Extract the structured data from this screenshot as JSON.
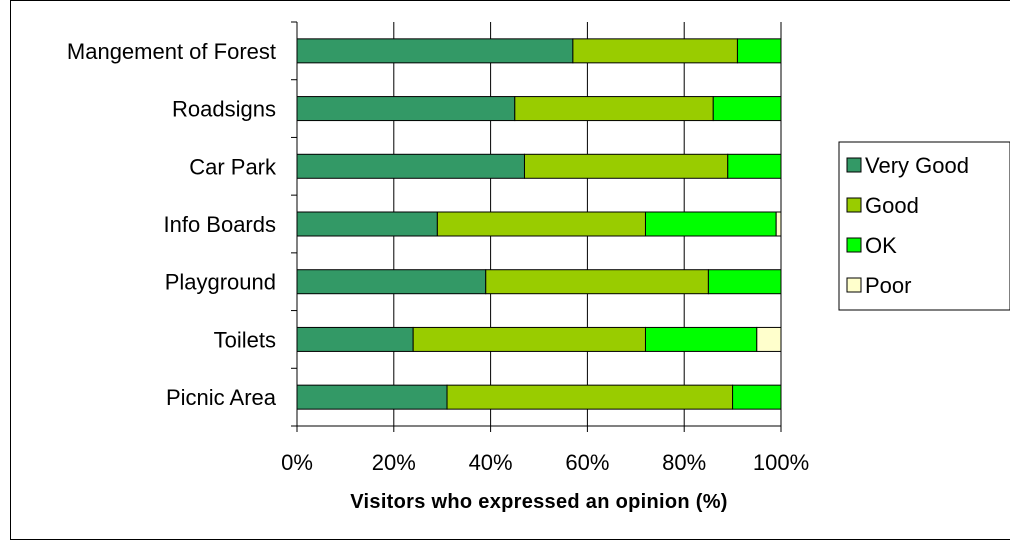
{
  "chart_data": {
    "type": "bar",
    "orientation": "horizontal",
    "stacked": true,
    "categories": [
      "Mangement of Forest",
      "Roadsigns",
      "Car Park",
      "Info Boards",
      "Playground",
      "Toilets",
      "Picnic Area"
    ],
    "series": [
      {
        "name": "Very Good",
        "color": "#339966",
        "values": [
          57,
          45,
          47,
          29,
          39,
          24,
          31
        ]
      },
      {
        "name": "Good",
        "color": "#99cc00",
        "values": [
          34,
          41,
          42,
          43,
          46,
          48,
          59
        ]
      },
      {
        "name": "OK",
        "color": "#00ff00",
        "values": [
          9,
          14,
          11,
          27,
          15,
          23,
          10
        ]
      },
      {
        "name": "Poor",
        "color": "#ffffcc",
        "values": [
          0,
          0,
          0,
          1,
          0,
          5,
          0
        ]
      }
    ],
    "xticks": [
      "0%",
      "20%",
      "40%",
      "60%",
      "80%",
      "100%"
    ],
    "xlim": [
      0,
      100
    ],
    "xlabel": "Visitors who expressed an opinion (%)",
    "ylabel": "",
    "grid": "vertical",
    "legend_position": "right"
  }
}
